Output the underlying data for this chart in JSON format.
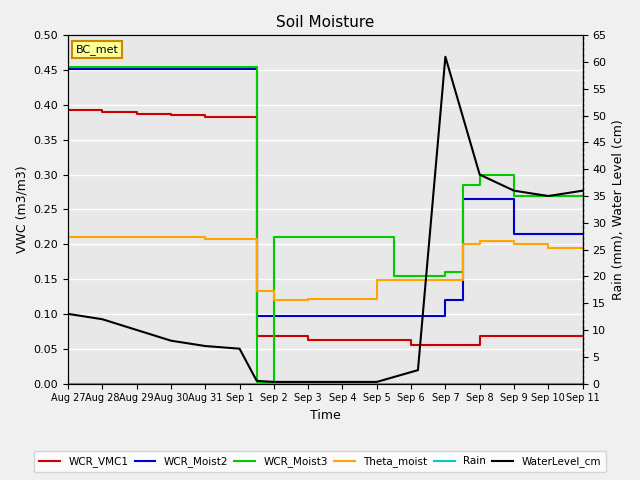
{
  "title": "Soil Moisture",
  "xlabel": "Time",
  "ylabel_left": "VWC (m3/m3)",
  "ylabel_right": "Rain (mm), Water Level (cm)",
  "ylim_left": [
    0.0,
    0.5
  ],
  "ylim_right": [
    0,
    65
  ],
  "background_color": "#e8e8e8",
  "legend_label": "BC_met",
  "series": {
    "WCR_VMC1": {
      "color": "#cc0000",
      "data_x": [
        0,
        1,
        2,
        3,
        4,
        5,
        5.5,
        6,
        7,
        8,
        9,
        10,
        10.5,
        11,
        12,
        13,
        14,
        15
      ],
      "data_y": [
        0.393,
        0.39,
        0.387,
        0.385,
        0.383,
        0.383,
        0.068,
        0.068,
        0.062,
        0.062,
        0.062,
        0.055,
        0.055,
        0.055,
        0.068,
        0.068,
        0.068,
        0.068
      ]
    },
    "WCR_Moist2": {
      "color": "#0000cc",
      "data_x": [
        0,
        1,
        2,
        3,
        4,
        5,
        5.5,
        6,
        7,
        8,
        9,
        10,
        10.5,
        11,
        11.5,
        12,
        13,
        14,
        15
      ],
      "data_y": [
        0.452,
        0.452,
        0.452,
        0.452,
        0.452,
        0.452,
        0.097,
        0.097,
        0.097,
        0.097,
        0.097,
        0.097,
        0.097,
        0.12,
        0.265,
        0.265,
        0.215,
        0.215,
        0.215
      ]
    },
    "WCR_Moist3": {
      "color": "#00cc00",
      "data_x": [
        0,
        1,
        2,
        3,
        4,
        5,
        5.5,
        6,
        7,
        8,
        9,
        9.5,
        10,
        10.5,
        11,
        11.5,
        12,
        13,
        14,
        15
      ],
      "data_y": [
        0.454,
        0.454,
        0.454,
        0.454,
        0.454,
        0.454,
        0.002,
        0.21,
        0.21,
        0.21,
        0.21,
        0.155,
        0.155,
        0.155,
        0.16,
        0.285,
        0.3,
        0.27,
        0.27,
        0.27
      ]
    },
    "Theta_moist": {
      "color": "#ffa500",
      "data_x": [
        0,
        1,
        2,
        3,
        4,
        5,
        5.5,
        6,
        7,
        8,
        9,
        10,
        10.5,
        11,
        11.5,
        12,
        13,
        14,
        15
      ],
      "data_y": [
        0.21,
        0.21,
        0.21,
        0.21,
        0.208,
        0.208,
        0.133,
        0.12,
        0.122,
        0.122,
        0.148,
        0.148,
        0.148,
        0.148,
        0.2,
        0.205,
        0.2,
        0.195,
        0.195
      ]
    },
    "Rain": {
      "color": "#00cccc",
      "data_x": [
        0,
        15
      ],
      "data_y": [
        0.0,
        0.0
      ]
    },
    "WaterLevel_cm": {
      "color": "#000000",
      "linestyle": "-",
      "data_x": [
        0,
        1,
        2,
        3,
        4,
        5,
        5.5,
        6,
        7,
        8,
        9,
        10.2,
        11,
        11.5,
        12,
        13,
        14,
        15
      ],
      "data_y_right": [
        13,
        12,
        10,
        8,
        7,
        6.5,
        0.5,
        0.3,
        0.3,
        0.3,
        0.3,
        2.5,
        61,
        50,
        39,
        36,
        35,
        36
      ]
    }
  },
  "xtick_positions": [
    0,
    1,
    2,
    3,
    4,
    5,
    6,
    7,
    8,
    9,
    10,
    11,
    12,
    13,
    14,
    15
  ],
  "xtick_labels": [
    "Aug 27",
    "Aug 28",
    "Aug 29",
    "Aug 30",
    "Aug 31",
    "Sep 1",
    "Sep 2",
    "Sep 3",
    "Sep 4",
    "Sep 5",
    "Sep 6",
    "Sep 7",
    "Sep 8",
    "Sep 9",
    "Sep 10",
    "Sep 11"
  ],
  "yticks_left": [
    0.0,
    0.05,
    0.1,
    0.15,
    0.2,
    0.25,
    0.3,
    0.35,
    0.4,
    0.45,
    0.5
  ],
  "yticks_right": [
    0,
    5,
    10,
    15,
    20,
    25,
    30,
    35,
    40,
    45,
    50,
    55,
    60,
    65
  ],
  "figsize": [
    6.4,
    4.8
  ],
  "dpi": 100
}
